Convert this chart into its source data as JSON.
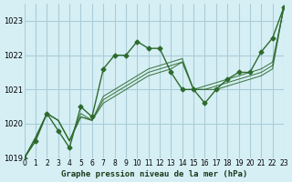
{
  "title": "Graphe pression niveau de la mer (hPa)",
  "bg_color": "#d6eff5",
  "grid_color": "#aaccd8",
  "line_color": "#2d6a2d",
  "marker_color": "#2d6a2d",
  "xlim": [
    0,
    23
  ],
  "ylim": [
    1019,
    1023.5
  ],
  "yticks": [
    1019,
    1020,
    1021,
    1022,
    1023
  ],
  "xtick_labels": [
    "0",
    "1",
    "2",
    "3",
    "4",
    "5",
    "6",
    "7",
    "8",
    "9",
    "10",
    "11",
    "12",
    "13",
    "14",
    "15",
    "16",
    "17",
    "18",
    "19",
    "20",
    "21",
    "22",
    "23"
  ],
  "series": [
    [
      1019.0,
      1019.5,
      1020.3,
      1019.8,
      1019.3,
      1020.5,
      1020.2,
      1021.6,
      1022.0,
      1022.0,
      1022.4,
      1022.2,
      1022.2,
      1021.5,
      1021.0,
      1021.0,
      1020.6,
      1021.0,
      1021.3,
      1021.5,
      1021.5,
      1022.1,
      1022.5,
      1023.4
    ],
    [
      1019.0,
      1019.6,
      1020.3,
      1020.1,
      1019.5,
      1020.3,
      1020.1,
      1020.8,
      1021.0,
      1021.2,
      1021.4,
      1021.6,
      1021.7,
      1021.8,
      1021.9,
      1021.0,
      1021.1,
      1021.2,
      1021.3,
      1021.4,
      1021.5,
      1021.6,
      1021.8,
      1023.4
    ],
    [
      1019.0,
      1019.6,
      1020.3,
      1020.1,
      1019.5,
      1020.2,
      1020.1,
      1020.7,
      1020.9,
      1021.1,
      1021.3,
      1021.5,
      1021.6,
      1021.7,
      1021.8,
      1021.0,
      1021.0,
      1021.1,
      1021.2,
      1021.3,
      1021.4,
      1021.5,
      1021.7,
      1023.4
    ],
    [
      1019.0,
      1019.6,
      1020.3,
      1020.1,
      1019.5,
      1020.2,
      1020.1,
      1020.6,
      1020.8,
      1021.0,
      1021.2,
      1021.4,
      1021.5,
      1021.6,
      1021.8,
      1021.0,
      1021.0,
      1021.0,
      1021.1,
      1021.2,
      1021.3,
      1021.4,
      1021.6,
      1023.4
    ]
  ],
  "main_series": [
    1019.0,
    1019.5,
    1020.3,
    1019.8,
    1019.3,
    1020.5,
    1020.2,
    1021.6,
    1022.0,
    1022.0,
    1022.4,
    1022.2,
    1022.2,
    1021.5,
    1021.0,
    1021.0,
    1020.6,
    1021.0,
    1021.3,
    1021.5,
    1021.5,
    1022.1,
    1022.5,
    1023.4
  ]
}
